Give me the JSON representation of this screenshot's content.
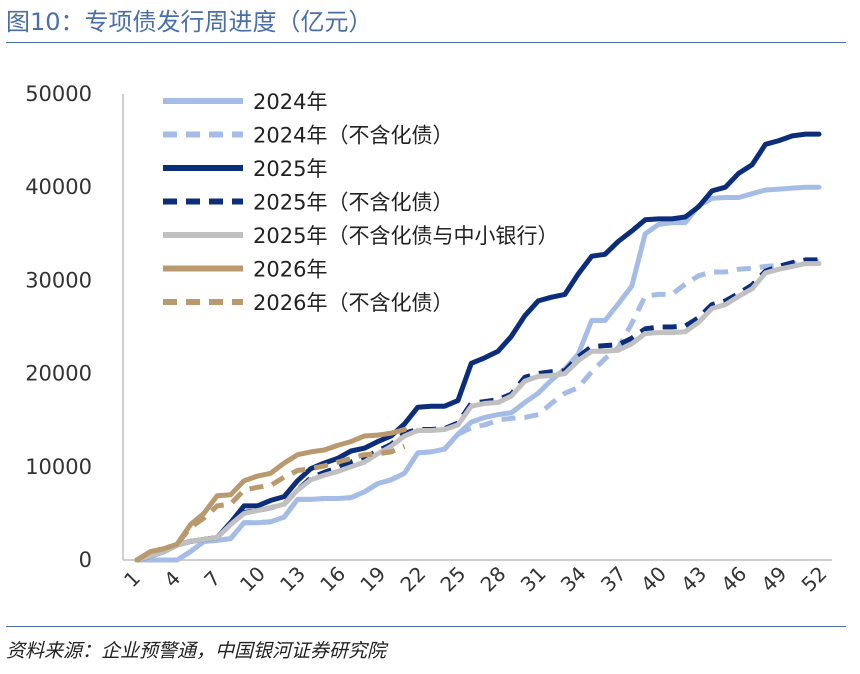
{
  "header": {
    "title": "图10：专项债发行周进度（亿元）"
  },
  "footer": {
    "source": "资料来源：企业预警通，中国银河证券研究院"
  },
  "chart_data": {
    "type": "line",
    "title": "",
    "xlabel": "",
    "ylabel": "",
    "xlim": [
      1,
      52
    ],
    "ylim": [
      0,
      50000
    ],
    "y_ticks": [
      0,
      10000,
      20000,
      30000,
      40000,
      50000
    ],
    "y_tick_labels": [
      "0",
      "10000",
      "20000",
      "30000",
      "40000",
      "50000"
    ],
    "x_ticks": [
      1,
      4,
      7,
      10,
      13,
      16,
      19,
      22,
      25,
      28,
      31,
      34,
      37,
      40,
      43,
      46,
      49,
      52
    ],
    "x_tick_labels": [
      "1",
      "4",
      "7",
      "10",
      "13",
      "16",
      "19",
      "22",
      "25",
      "28",
      "31",
      "34",
      "37",
      "40",
      "43",
      "46",
      "49",
      "52"
    ],
    "grid": false,
    "legend_position": "top-left",
    "series": [
      {
        "name": "2024年",
        "color": "#a5bde6",
        "dash": "solid",
        "x": [
          1,
          2,
          3,
          4,
          5,
          6,
          7,
          8,
          9,
          10,
          11,
          12,
          13,
          14,
          15,
          16,
          17,
          18,
          19,
          20,
          21,
          22,
          23,
          24,
          25,
          26,
          27,
          28,
          29,
          30,
          31,
          32,
          33,
          34,
          35,
          36,
          37,
          38,
          39,
          40,
          41,
          42,
          43,
          44,
          45,
          46,
          47,
          48,
          49,
          50,
          51,
          52
        ],
        "y": [
          0,
          0,
          0,
          0,
          900,
          2000,
          2100,
          2300,
          4000,
          4000,
          4100,
          4600,
          6500,
          6500,
          6600,
          6600,
          6700,
          7300,
          8200,
          8600,
          9300,
          11500,
          11600,
          11900,
          13500,
          14800,
          15300,
          15600,
          15800,
          16900,
          17900,
          19300,
          20500,
          22100,
          25700,
          25700,
          27500,
          29400,
          35000,
          36000,
          36200,
          36200,
          38000,
          38800,
          38900,
          38900,
          39300,
          39700,
          39800,
          39900,
          40000,
          40000
        ]
      },
      {
        "name": "2024年（不含化债）",
        "color": "#a5bde6",
        "dash": "dashed",
        "x": [
          1,
          2,
          3,
          4,
          5,
          6,
          7,
          8,
          9,
          10,
          11,
          12,
          13,
          14,
          15,
          16,
          17,
          18,
          19,
          20,
          21,
          22,
          23,
          24,
          25,
          26,
          27,
          28,
          29,
          30,
          31,
          32,
          33,
          34,
          35,
          36,
          37,
          38,
          39,
          40,
          41,
          42,
          43,
          44,
          45,
          46,
          47,
          48,
          49,
          50,
          51,
          52
        ],
        "y": [
          0,
          0,
          0,
          0,
          900,
          2000,
          2100,
          2300,
          4000,
          4000,
          4100,
          4600,
          6500,
          6500,
          6600,
          6600,
          6700,
          7300,
          8200,
          8600,
          9300,
          11500,
          11600,
          11900,
          13500,
          14200,
          14500,
          15000,
          15200,
          15300,
          15600,
          16800,
          17900,
          18500,
          20200,
          21600,
          22800,
          25400,
          28300,
          28500,
          28500,
          29600,
          30500,
          30900,
          30900,
          31200,
          31300,
          31500,
          31600,
          31800,
          31900,
          32000
        ]
      },
      {
        "name": "2025年",
        "color": "#0b2d7a",
        "dash": "solid",
        "x": [
          1,
          2,
          3,
          4,
          5,
          6,
          7,
          8,
          9,
          10,
          11,
          12,
          13,
          14,
          15,
          16,
          17,
          18,
          19,
          20,
          21,
          22,
          23,
          24,
          25,
          26,
          27,
          28,
          29,
          30,
          31,
          32,
          33,
          34,
          35,
          36,
          37,
          38,
          39,
          40,
          41,
          42,
          43,
          44,
          45,
          46,
          47,
          48,
          49,
          50,
          51,
          52
        ],
        "y": [
          0,
          400,
          900,
          1600,
          2000,
          2200,
          2400,
          4000,
          5800,
          5800,
          6400,
          6800,
          8500,
          9800,
          10400,
          10900,
          11700,
          12000,
          12700,
          13300,
          14600,
          16400,
          16500,
          16500,
          17100,
          21100,
          21700,
          22400,
          24000,
          26200,
          27800,
          28200,
          28500,
          30700,
          32600,
          32800,
          34200,
          35300,
          36500,
          36600,
          36600,
          36800,
          37900,
          39600,
          40000,
          41500,
          42400,
          44600,
          45000,
          45500,
          45700,
          45700
        ]
      },
      {
        "name": "2025年（不含化债）",
        "color": "#0b2d7a",
        "dash": "dashed",
        "x": [
          1,
          2,
          3,
          4,
          5,
          6,
          7,
          8,
          9,
          10,
          11,
          12,
          13,
          14,
          15,
          16,
          17,
          18,
          19,
          20,
          21,
          22,
          23,
          24,
          25,
          26,
          27,
          28,
          29,
          30,
          31,
          32,
          33,
          34,
          35,
          36,
          37,
          38,
          39,
          40,
          41,
          42,
          43,
          44,
          45,
          46,
          47,
          48,
          49,
          50,
          51,
          52
        ],
        "y": [
          0,
          400,
          900,
          1600,
          2000,
          2200,
          2400,
          4000,
          5100,
          5300,
          5600,
          6000,
          7500,
          8800,
          9400,
          9900,
          10500,
          11000,
          11700,
          12400,
          13600,
          14000,
          14000,
          14100,
          14700,
          16800,
          17000,
          17200,
          17800,
          19600,
          20000,
          20200,
          20300,
          21800,
          22900,
          23000,
          23100,
          23800,
          24800,
          25000,
          25000,
          25100,
          26000,
          27400,
          27800,
          28600,
          29500,
          31000,
          31500,
          31900,
          32200,
          32200
        ]
      },
      {
        "name": "2025年（不含化债与中小银行）",
        "color": "#c0c0c0",
        "dash": "solid",
        "x": [
          1,
          2,
          3,
          4,
          5,
          6,
          7,
          8,
          9,
          10,
          11,
          12,
          13,
          14,
          15,
          16,
          17,
          18,
          19,
          20,
          21,
          22,
          23,
          24,
          25,
          26,
          27,
          28,
          29,
          30,
          31,
          32,
          33,
          34,
          35,
          36,
          37,
          38,
          39,
          40,
          41,
          42,
          43,
          44,
          45,
          46,
          47,
          48,
          49,
          50,
          51,
          52
        ],
        "y": [
          0,
          400,
          900,
          1600,
          2000,
          2200,
          2400,
          3800,
          5000,
          5300,
          5600,
          6000,
          7500,
          8600,
          9100,
          9500,
          10000,
          10500,
          11400,
          12200,
          13300,
          13900,
          13900,
          14000,
          14500,
          16500,
          16800,
          16900,
          17600,
          19200,
          19700,
          19800,
          20000,
          21400,
          22400,
          22400,
          22500,
          23200,
          24300,
          24400,
          24400,
          24500,
          25500,
          27000,
          27400,
          28300,
          29100,
          30800,
          31200,
          31500,
          31800,
          31800
        ]
      },
      {
        "name": "2026年",
        "color": "#b89a6e",
        "dash": "solid",
        "x": [
          1,
          2,
          3,
          4,
          5,
          6,
          7,
          8,
          9,
          10,
          11,
          12,
          13,
          14,
          15,
          16,
          17,
          18,
          19,
          20,
          21
        ],
        "y": [
          0,
          900,
          1200,
          1700,
          3800,
          5000,
          6900,
          7000,
          8500,
          9000,
          9300,
          10400,
          11300,
          11600,
          11800,
          12300,
          12700,
          13300,
          13400,
          13600,
          14000
        ]
      },
      {
        "name": "2026年（不含化债）",
        "color": "#b89a6e",
        "dash": "dashed",
        "x": [
          1,
          2,
          3,
          4,
          5,
          6,
          7,
          8,
          9,
          10,
          11,
          12,
          13,
          14,
          15,
          16,
          17,
          18,
          19,
          20,
          21
        ],
        "y": [
          0,
          900,
          1200,
          1700,
          3500,
          4500,
          5800,
          6000,
          7500,
          7800,
          8000,
          8900,
          9600,
          9800,
          10100,
          10500,
          10900,
          11300,
          11400,
          11600,
          12200
        ]
      }
    ]
  }
}
